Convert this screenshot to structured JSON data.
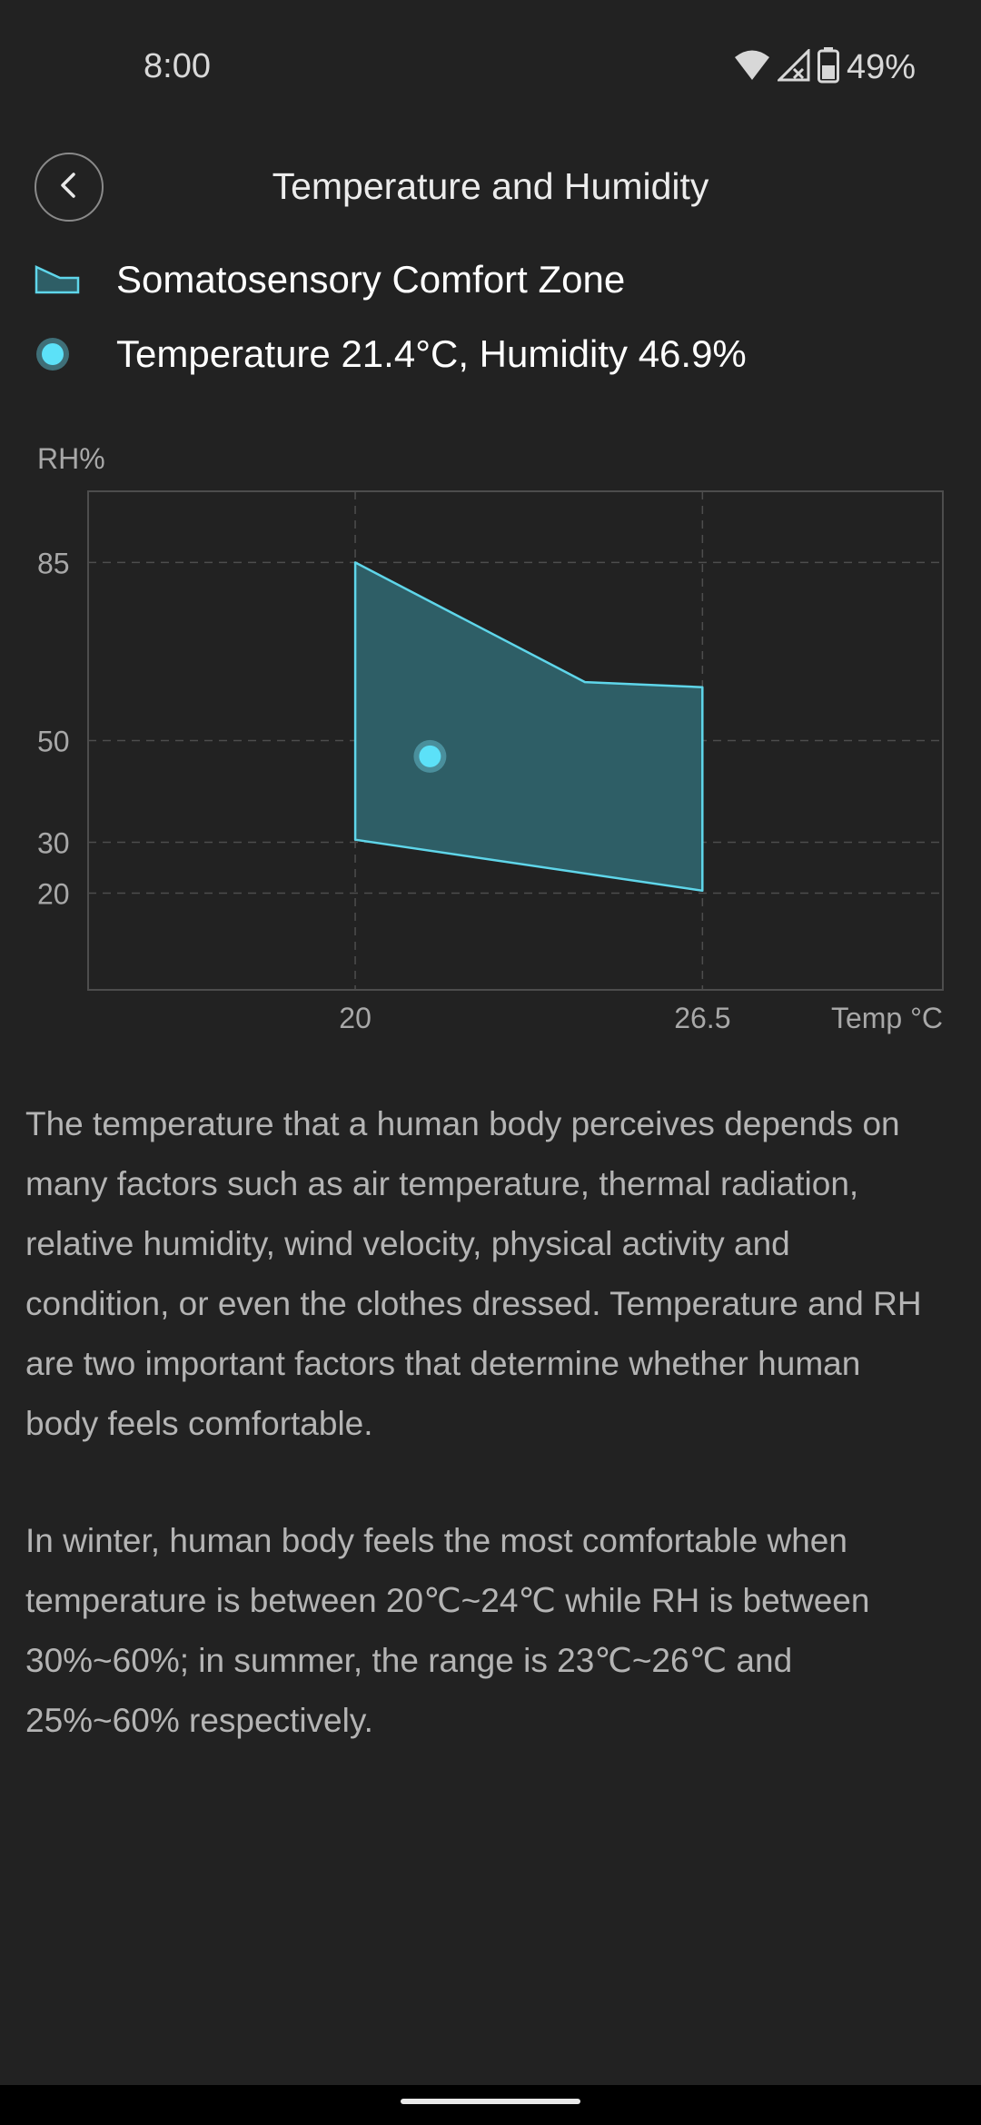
{
  "status_bar": {
    "time": "8:00",
    "battery_percent": "49%",
    "icons": [
      "wifi-icon",
      "signal-off-icon",
      "battery-icon"
    ]
  },
  "header": {
    "title": "Temperature and Humidity",
    "back_icon": "chevron-left-icon"
  },
  "legend": {
    "zone_label": "Somatosensory Comfort Zone",
    "point_label": "Temperature 21.4°C, Humidity 46.9%"
  },
  "colors": {
    "background": "#222222",
    "accent": "#5ce1f8",
    "zone_fill": "#2e5e66",
    "zone_stroke": "#5fd6ea",
    "text_primary": "#ffffff",
    "text_secondary": "#b4b4b4",
    "axis_text": "#a8a8a8",
    "grid": "#4d4d4d"
  },
  "chart_data": {
    "type": "scatter",
    "title": "",
    "xlabel": "Temp °C",
    "ylabel": "RH%",
    "xlim": [
      15,
      31
    ],
    "ylim": [
      1,
      99
    ],
    "x_ticks": [
      "20",
      "26.5"
    ],
    "x_tick_values": [
      20,
      26.5
    ],
    "y_ticks": [
      "85",
      "50",
      "30",
      "20"
    ],
    "y_tick_values": [
      85,
      50,
      30,
      20
    ],
    "grid": true,
    "comfort_zone": {
      "name": "Somatosensory Comfort Zone",
      "vertices": [
        {
          "x": 20,
          "y": 85
        },
        {
          "x": 24.3,
          "y": 61.5
        },
        {
          "x": 26.5,
          "y": 60.5
        },
        {
          "x": 26.5,
          "y": 20.5
        },
        {
          "x": 20,
          "y": 30.5
        }
      ]
    },
    "point": {
      "x": 21.4,
      "y": 46.9
    }
  },
  "description": {
    "paragraph_1": "The temperature that a human body perceives depends on many factors such as air temperature, thermal radiation, relative humidity, wind velocity, physical activity and condition, or even the clothes dressed. Temperature and RH are two important factors that determine whether human body feels comfortable.",
    "paragraph_2": "In winter, human body feels the most comfortable when temperature is between 20℃~24℃ while RH is between 30%~60%; in summer, the range is 23℃~26℃ and 25%~60% respectively."
  }
}
